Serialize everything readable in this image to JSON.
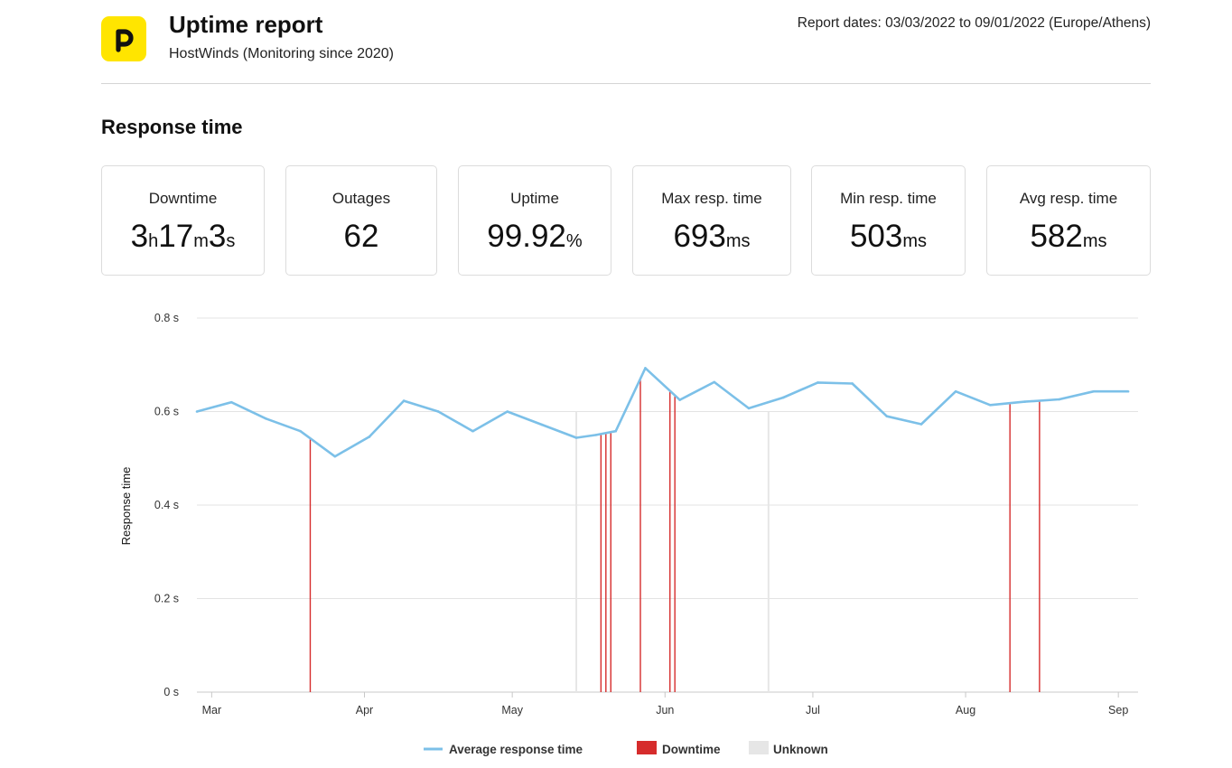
{
  "header": {
    "logo_icon": "pingdom-p-logo-icon",
    "logo_color": "#ffe500",
    "title": "Uptime report",
    "subtitle": "HostWinds (Monitoring since 2020)",
    "report_dates": "Report dates: 03/03/2022 to 09/01/2022 (Europe/Athens)"
  },
  "section_title": "Response time",
  "stats": [
    {
      "label": "Downtime",
      "parts": [
        [
          "3",
          false
        ],
        [
          "h",
          true
        ],
        [
          "17",
          false
        ],
        [
          "m",
          true
        ],
        [
          "3",
          false
        ],
        [
          "s",
          true
        ]
      ]
    },
    {
      "label": "Outages",
      "parts": [
        [
          "62",
          false
        ]
      ]
    },
    {
      "label": "Uptime",
      "parts": [
        [
          "99.92",
          false
        ],
        [
          "%",
          true
        ]
      ]
    },
    {
      "label": "Max resp. time",
      "parts": [
        [
          "693",
          false
        ],
        [
          "ms",
          true
        ]
      ]
    },
    {
      "label": "Min resp. time",
      "parts": [
        [
          "503",
          false
        ],
        [
          "ms",
          true
        ]
      ]
    },
    {
      "label": "Avg resp. time",
      "parts": [
        [
          "582",
          false
        ],
        [
          "ms",
          true
        ]
      ]
    }
  ],
  "chart_data": {
    "type": "line",
    "ylabel": "Response time",
    "ylim": [
      0,
      0.8
    ],
    "yticks": [
      0,
      0.2,
      0.4,
      0.6,
      0.8
    ],
    "ytick_labels": [
      "0 s",
      "0.2 s",
      "0.4 s",
      "0.6 s",
      "0.8 s"
    ],
    "xlim": [
      "2022-02-26",
      "2022-09-05"
    ],
    "xticks": [
      {
        "date": "2022-03-01",
        "label": "Mar"
      },
      {
        "date": "2022-04-01",
        "label": "Apr"
      },
      {
        "date": "2022-05-01",
        "label": "May"
      },
      {
        "date": "2022-06-01",
        "label": "Jun"
      },
      {
        "date": "2022-07-01",
        "label": "Jul"
      },
      {
        "date": "2022-08-01",
        "label": "Aug"
      },
      {
        "date": "2022-09-01",
        "label": "Sep"
      }
    ],
    "grid": true,
    "legend_position": "bottom",
    "series": [
      {
        "name": "Average response time",
        "color": "#7cc0e8",
        "x": [
          "2022-02-26",
          "2022-03-05",
          "2022-03-12",
          "2022-03-19",
          "2022-03-26",
          "2022-04-02",
          "2022-04-09",
          "2022-04-16",
          "2022-04-23",
          "2022-04-30",
          "2022-05-07",
          "2022-05-14",
          "2022-05-18",
          "2022-05-22",
          "2022-05-28",
          "2022-06-04",
          "2022-06-11",
          "2022-06-18",
          "2022-06-25",
          "2022-07-02",
          "2022-07-09",
          "2022-07-16",
          "2022-07-23",
          "2022-07-30",
          "2022-08-06",
          "2022-08-13",
          "2022-08-20",
          "2022-08-27",
          "2022-09-03"
        ],
        "y": [
          0.6,
          0.62,
          0.585,
          0.558,
          0.504,
          0.546,
          0.623,
          0.6,
          0.558,
          0.6,
          0.572,
          0.544,
          0.55,
          0.558,
          0.693,
          0.625,
          0.663,
          0.607,
          0.63,
          0.662,
          0.66,
          0.59,
          0.573,
          0.643,
          0.614,
          0.621,
          0.626,
          0.643,
          0.643
        ]
      }
    ],
    "downtime": {
      "name": "Downtime",
      "color": "#d62c2c",
      "dates": [
        "2022-03-21",
        "2022-05-19",
        "2022-05-20",
        "2022-05-21",
        "2022-05-27",
        "2022-06-02",
        "2022-06-03",
        "2022-08-10",
        "2022-08-16"
      ]
    },
    "unknown": {
      "name": "Unknown",
      "color": "#e6e6e6",
      "dates": [
        "2022-05-14",
        "2022-06-22"
      ]
    }
  }
}
